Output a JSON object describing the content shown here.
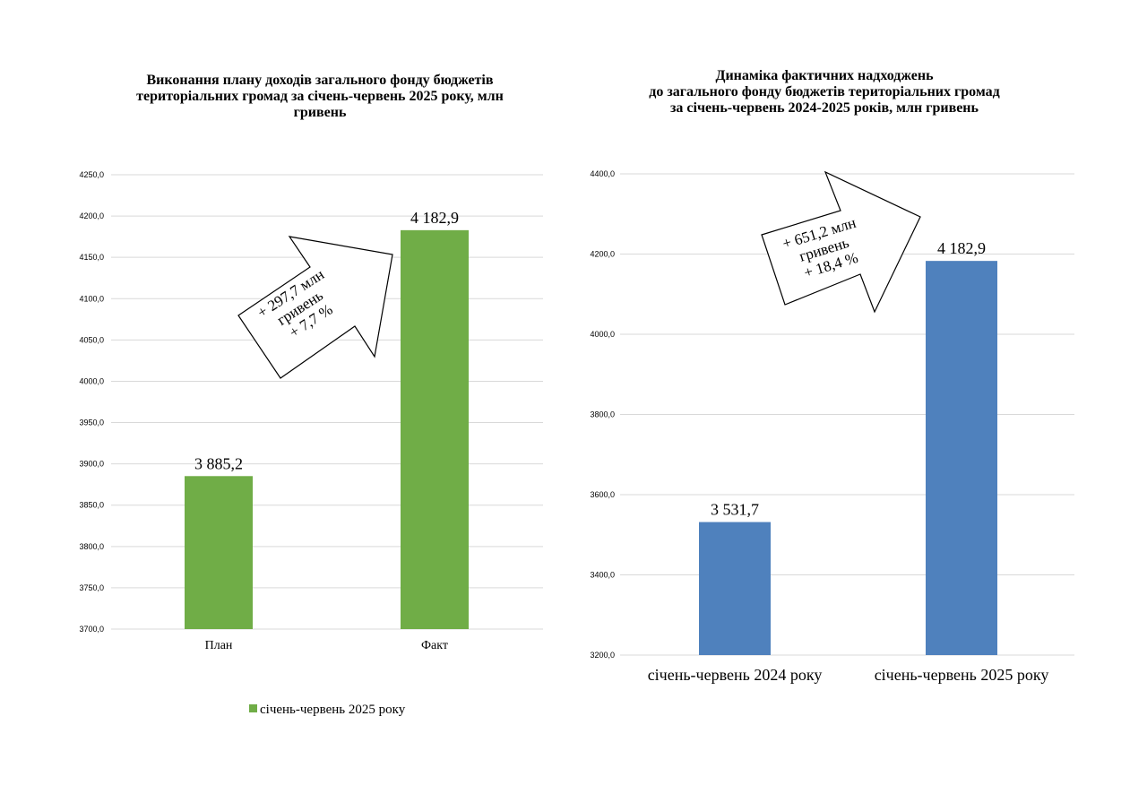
{
  "colors": {
    "green_bar": "#70AD47",
    "blue_bar": "#4F81BD",
    "gridline": "#D9D9D9",
    "arrow_stroke": "#000000",
    "arrow_fill": "#FFFFFF"
  },
  "chart_data": [
    {
      "type": "bar",
      "title": "Виконання плану доходів загального фонду бюджетів\nтериторіальних громад за січень-червень 2025 року, млн\nгривень",
      "categories": [
        "План",
        "Факт"
      ],
      "series": [
        {
          "name": "січень-червень 2025 року",
          "values": [
            3885.2,
            4182.9
          ],
          "color": "#70AD47"
        }
      ],
      "data_labels": [
        "3 885,2",
        "4 182,9"
      ],
      "ylim": [
        3700,
        4250
      ],
      "yticks": [
        "3700,0",
        "3750,0",
        "3800,0",
        "3850,0",
        "3900,0",
        "3950,0",
        "4000,0",
        "4050,0",
        "4100,0",
        "4150,0",
        "4200,0",
        "4250,0"
      ],
      "ytick_values": [
        3700,
        3750,
        3800,
        3850,
        3900,
        3950,
        4000,
        4050,
        4100,
        4150,
        4200,
        4250
      ],
      "grid": true,
      "legend": "bottom",
      "annotation": {
        "shape": "arrow-up-right",
        "lines": [
          "+ 297,7 млн",
          "гривень",
          "+ 7,7 %"
        ]
      }
    },
    {
      "type": "bar",
      "title": "Динаміка фактичних надходжень\nдо загального фонду бюджетів територіальних громад\nза січень-червень 2024-2025 років, млн гривень",
      "categories": [
        "січень-червень 2024 року",
        "січень-червень 2025 року"
      ],
      "series": [
        {
          "values": [
            3531.7,
            4182.9
          ],
          "color": "#4F81BD"
        }
      ],
      "data_labels": [
        "3 531,7",
        "4 182,9"
      ],
      "ylim": [
        3200,
        4400
      ],
      "yticks": [
        "3200,0",
        "3400,0",
        "3600,0",
        "3800,0",
        "4000,0",
        "4200,0",
        "4400,0"
      ],
      "ytick_values": [
        3200,
        3400,
        3600,
        3800,
        4000,
        4200,
        4400
      ],
      "grid": true,
      "legend": "none",
      "annotation": {
        "shape": "arrow-up-right",
        "lines": [
          "+ 651,2 млн",
          "гривень",
          "+ 18,4 %"
        ]
      }
    }
  ]
}
